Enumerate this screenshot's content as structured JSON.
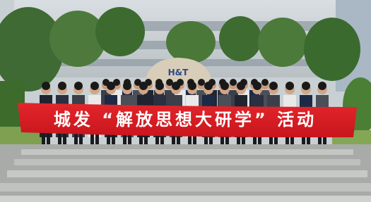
{
  "banner": {
    "text": "城发 “解放思想大研学” 活动"
  },
  "rock": {
    "label": "H&T"
  }
}
